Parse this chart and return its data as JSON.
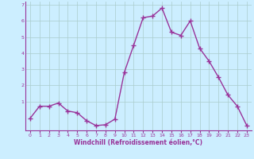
{
  "x": [
    0,
    1,
    2,
    3,
    4,
    5,
    6,
    7,
    8,
    9,
    10,
    11,
    12,
    13,
    14,
    15,
    16,
    17,
    18,
    19,
    20,
    21,
    22,
    23
  ],
  "y": [
    -0.05,
    0.7,
    0.7,
    0.9,
    0.4,
    0.3,
    -0.2,
    -0.5,
    -0.45,
    -0.1,
    2.8,
    4.5,
    6.2,
    6.3,
    6.8,
    5.3,
    5.1,
    6.0,
    4.3,
    3.5,
    2.5,
    1.4,
    0.7,
    -0.5
  ],
  "line_color": "#993399",
  "marker": "+",
  "marker_size": 4,
  "linewidth": 1.0,
  "bg_color": "#cceeff",
  "grid_color": "#aacccc",
  "xlabel": "Windchill (Refroidissement éolien,°C)",
  "tick_color": "#993399",
  "ylim": [
    -0.8,
    7.2
  ],
  "xlim": [
    -0.5,
    23.5
  ],
  "yticks": [
    1,
    2,
    3,
    4,
    5,
    6,
    7
  ],
  "ytick_labels": [
    "1",
    "2",
    "3",
    "4",
    "5",
    "6",
    "7"
  ],
  "y_neg0_pos": -0.05,
  "xticks": [
    0,
    1,
    2,
    3,
    4,
    5,
    6,
    7,
    8,
    9,
    10,
    11,
    12,
    13,
    14,
    15,
    16,
    17,
    18,
    19,
    20,
    21,
    22,
    23
  ]
}
